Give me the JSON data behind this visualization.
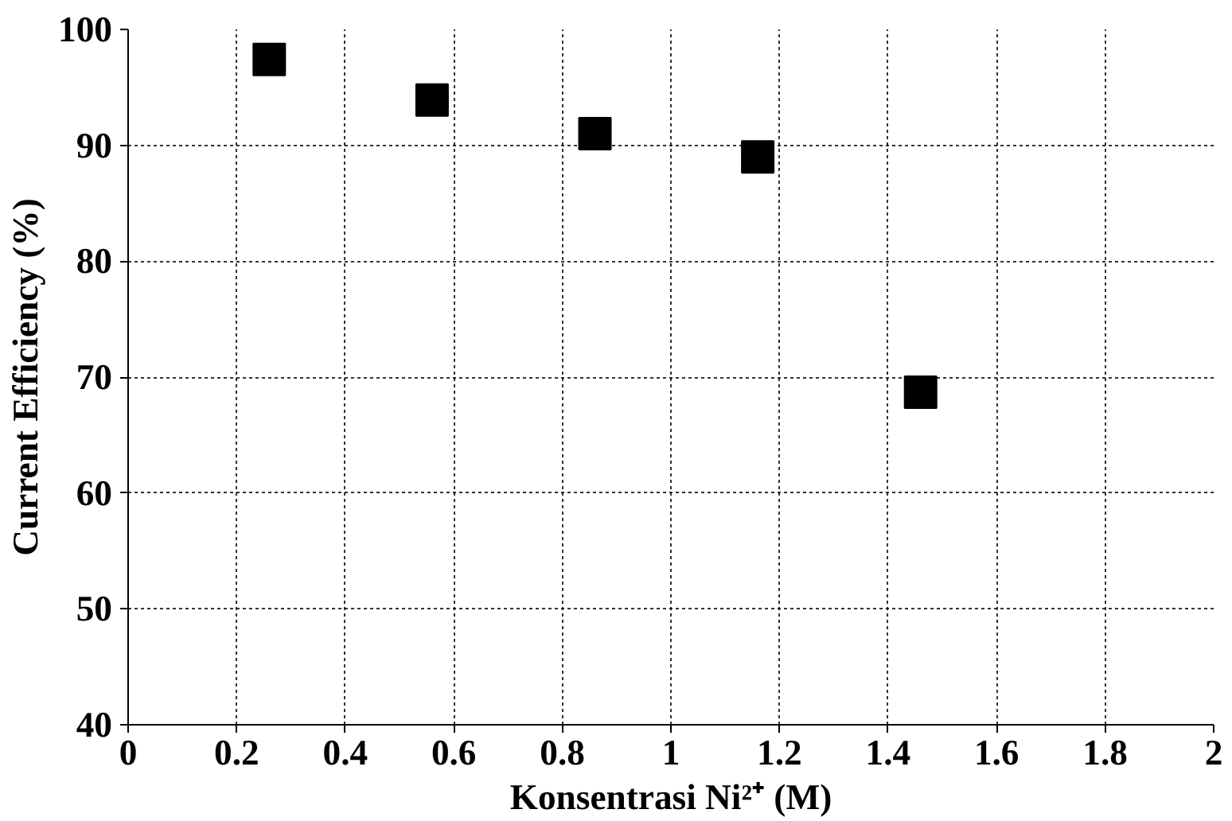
{
  "chart_data": {
    "type": "scatter",
    "xlabel": "Konsentrasi Ni²⁺ (M)",
    "ylabel": "Current Efficiency (%)",
    "x": [
      0.26,
      0.56,
      0.86,
      1.16,
      1.46
    ],
    "series": [
      {
        "color": "#000000",
        "values": [
          97.4,
          93.9,
          91.0,
          89.0,
          68.7
        ]
      }
    ],
    "xlim": [
      0,
      2
    ],
    "xticks": [
      0,
      0.2,
      0.4,
      0.6,
      0.8,
      1,
      1.2,
      1.4,
      1.6,
      1.8,
      2
    ],
    "ylim": [
      40,
      100
    ],
    "yticks": [
      40,
      50,
      60,
      70,
      80,
      90,
      100
    ],
    "grid": true,
    "marker": "square"
  }
}
